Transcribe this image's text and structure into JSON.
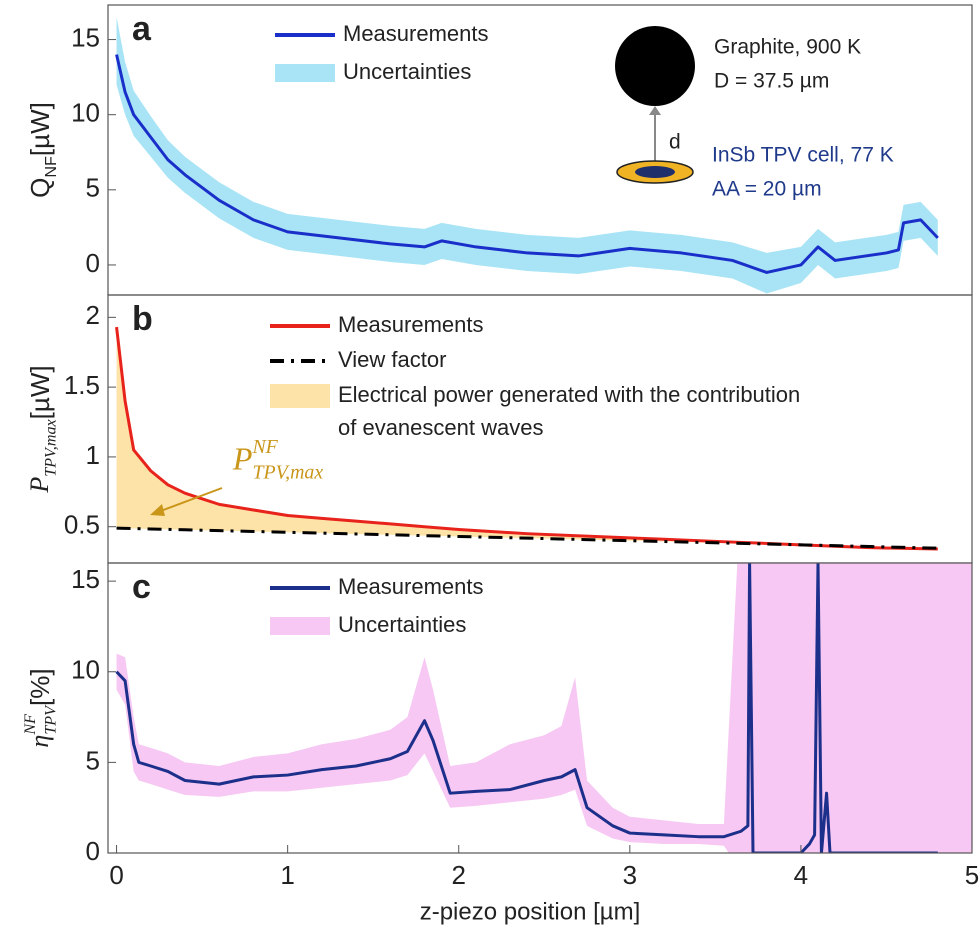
{
  "chart_data": [
    {
      "type": "line",
      "panel_label": "a",
      "y_label": [
        {
          "text": "Q"
        },
        {
          "text": "NF",
          "pos": "sub"
        },
        {
          "text": " [µW]"
        }
      ],
      "xlim": [
        -0.05,
        5
      ],
      "ylim": [
        -2,
        17.3
      ],
      "yticks": [
        0,
        5,
        10,
        15
      ],
      "x": [
        0,
        0.05,
        0.1,
        0.2,
        0.3,
        0.4,
        0.6,
        0.8,
        1.0,
        1.3,
        1.6,
        1.8,
        1.9,
        2.1,
        2.4,
        2.7,
        3.0,
        3.3,
        3.6,
        3.8,
        4.0,
        4.1,
        4.2,
        4.5,
        4.57,
        4.6,
        4.7,
        4.8
      ],
      "series": [
        {
          "name": "Measurements",
          "color": "#1a2fc9",
          "values": [
            14,
            11.5,
            10,
            8.5,
            7,
            6,
            4.3,
            3,
            2.2,
            1.8,
            1.4,
            1.2,
            1.6,
            1.2,
            0.8,
            0.6,
            1.1,
            0.8,
            0.3,
            -0.5,
            0,
            1.2,
            0.3,
            0.8,
            1.0,
            2.8,
            3.0,
            1.8
          ]
        },
        {
          "name": "Uncertainties",
          "color": "#a8e4f5",
          "upper": [
            16.5,
            13.5,
            11.6,
            9.9,
            8.3,
            7.2,
            5.5,
            4.2,
            3.4,
            3.0,
            2.6,
            2.4,
            2.8,
            2.4,
            2.0,
            1.8,
            2.3,
            2.0,
            1.5,
            0.8,
            1.2,
            2.4,
            1.5,
            2.0,
            2.2,
            4.0,
            4.2,
            3.0
          ],
          "lower": [
            12,
            10,
            8.6,
            7.2,
            5.8,
            4.8,
            3.1,
            1.8,
            1.0,
            0.6,
            0.2,
            0.0,
            0.4,
            0.0,
            -0.4,
            -0.6,
            -0.1,
            -0.4,
            -0.9,
            -1.9,
            -1.2,
            0.0,
            -0.9,
            -0.4,
            -0.2,
            1.6,
            1.8,
            0.6
          ]
        }
      ],
      "annotations": {
        "top": [
          "Graphite, 900 K",
          "D = 37.5 µm"
        ],
        "gap": "d",
        "bottom": [
          "InSb TPV cell, 77 K",
          "AA = 20 µm"
        ]
      }
    },
    {
      "type": "line",
      "panel_label": "b",
      "y_label": [
        {
          "text": "P",
          "italic": true
        },
        {
          "text": "TPV,max",
          "pos": "sub",
          "italic": true
        },
        {
          "text": " [µW]"
        }
      ],
      "xlim": [
        -0.05,
        5
      ],
      "ylim": [
        0.24,
        2.16
      ],
      "yticks": [
        0.5,
        1,
        1.5,
        2
      ],
      "x": [
        0,
        0.05,
        0.1,
        0.2,
        0.3,
        0.4,
        0.5,
        0.6,
        0.8,
        1.0,
        1.2,
        1.4,
        1.6,
        1.8,
        2.0,
        2.4,
        2.8,
        3.2,
        3.6,
        4.0,
        4.4,
        4.8
      ],
      "series": [
        {
          "name": "Measurements",
          "color": "#e8231c",
          "values": [
            1.93,
            1.4,
            1.05,
            0.9,
            0.8,
            0.74,
            0.7,
            0.66,
            0.62,
            0.58,
            0.56,
            0.54,
            0.52,
            0.5,
            0.48,
            0.45,
            0.43,
            0.41,
            0.39,
            0.37,
            0.35,
            0.34
          ]
        },
        {
          "name": "View factor",
          "color": "#000000",
          "dash": "dash-dot",
          "values": [
            0.49,
            0.488,
            0.487,
            0.484,
            0.481,
            0.478,
            0.475,
            0.472,
            0.466,
            0.46,
            0.454,
            0.448,
            0.442,
            0.436,
            0.43,
            0.418,
            0.406,
            0.394,
            0.382,
            0.37,
            0.358,
            0.346
          ]
        }
      ],
      "fill": {
        "name": [
          "Electrical power generated with the contribution",
          "of evanescent waves"
        ],
        "color": "#fde3a7"
      },
      "annotation": {
        "parts": [
          {
            "text": "P",
            "italic": true
          },
          {
            "text": "NF",
            "pos": "sup",
            "italic": true
          },
          {
            "text": "TPV,max",
            "pos": "sub",
            "italic": true
          }
        ],
        "color": "#c9961a"
      }
    },
    {
      "type": "line",
      "panel_label": "c",
      "y_label": [
        {
          "text": "η",
          "italic": true
        },
        {
          "text": "NF",
          "pos": "sup",
          "italic": true
        },
        {
          "text": "TPV",
          "pos": "sub",
          "italic": true
        },
        {
          "text": " [%]"
        }
      ],
      "x_label": "z-piezo position [µm]",
      "xlim": [
        -0.05,
        5
      ],
      "xticks": [
        0,
        1,
        2,
        3,
        4,
        5
      ],
      "ylim": [
        0,
        16
      ],
      "yticks": [
        0,
        5,
        10,
        15
      ],
      "x": [
        0,
        0.05,
        0.1,
        0.13,
        0.2,
        0.3,
        0.4,
        0.6,
        0.8,
        1.0,
        1.2,
        1.4,
        1.6,
        1.7,
        1.8,
        1.85,
        1.95,
        2.1,
        2.3,
        2.5,
        2.6,
        2.68,
        2.75,
        2.9,
        3.0,
        3.2,
        3.4,
        3.55,
        3.65,
        3.69,
        3.7,
        3.72,
        4.0,
        4.05,
        4.08,
        4.1,
        4.12,
        4.15,
        4.17,
        4.5,
        4.8,
        5.0
      ],
      "series": [
        {
          "name": "Measurements",
          "color": "#1c2f8a",
          "values": [
            10,
            9.5,
            6,
            5,
            4.8,
            4.5,
            4,
            3.8,
            4.2,
            4.3,
            4.6,
            4.8,
            5.2,
            5.6,
            7.3,
            6.2,
            3.3,
            3.4,
            3.5,
            4,
            4.2,
            4.6,
            2.5,
            1.5,
            1.1,
            1.0,
            0.9,
            0.9,
            1.2,
            1.5,
            16,
            0,
            0,
            0.5,
            1,
            16,
            0,
            3.3,
            0,
            0,
            0,
            null
          ]
        },
        {
          "name": "Uncertainties",
          "color": "#f6c8f3",
          "upper": [
            11,
            10.8,
            7.5,
            6,
            5.8,
            5.5,
            5,
            4.8,
            5.3,
            5.5,
            6,
            6.3,
            6.8,
            7.5,
            10.8,
            9,
            4.8,
            5,
            6,
            6.5,
            7,
            9.7,
            4,
            2.5,
            2,
            1.8,
            1.6,
            1.6,
            20,
            20,
            20,
            20,
            20,
            20,
            20,
            20,
            20,
            20,
            20,
            20,
            20,
            20
          ],
          "lower": [
            9,
            8.2,
            4.5,
            4,
            3.8,
            3.5,
            3.2,
            3.1,
            3.4,
            3.4,
            3.6,
            3.8,
            4,
            4.3,
            5.5,
            4.5,
            2.5,
            2.6,
            2.8,
            3,
            3.2,
            3.5,
            1.5,
            0.8,
            0.6,
            0.5,
            0.5,
            0.4,
            -1,
            -1,
            -1,
            -1,
            -1,
            -1,
            -1,
            -1,
            -1,
            -1,
            -1,
            -1,
            -1,
            -1
          ]
        }
      ]
    }
  ]
}
